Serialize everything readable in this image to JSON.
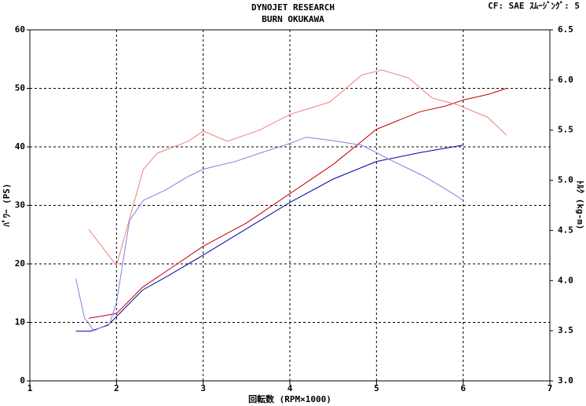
{
  "chart_data": {
    "type": "line",
    "title": "DYNOJET  RESEARCH",
    "subtitle": "BURN OKUKAWA",
    "annotation": "CF: SAE  ｽﾑｰｼﾞﾝｸﾞ: 5",
    "xlabel": "回転数 (RPM×1000)",
    "ylabel": "ﾊﾟﾜｰ (PS)",
    "y2label": "ﾄﾙｸ (kg-m)",
    "xlim": [
      1,
      7
    ],
    "xticks": [
      1,
      2,
      3,
      4,
      5,
      6,
      7
    ],
    "ylim": [
      0,
      60
    ],
    "yticks": [
      0,
      10,
      20,
      30,
      40,
      50,
      60
    ],
    "y2lim": [
      3,
      6.5
    ],
    "y2ticks": [
      {
        "value": 3,
        "label": "3.0"
      },
      3.5,
      {
        "value": 4,
        "label": "4.0"
      },
      4.5,
      {
        "value": 5,
        "label": "5.0"
      },
      5.5,
      {
        "value": 6,
        "label": "6.0"
      },
      6.5
    ],
    "grid": true,
    "series": [
      {
        "color": "#c00000",
        "x": [
          1.68,
          2.0,
          2.3,
          2.6,
          3.0,
          3.5,
          4.0,
          4.5,
          5.0,
          5.5,
          5.8,
          6.0,
          6.3,
          6.5
        ],
        "values": [
          10.7,
          11.5,
          16,
          19,
          23,
          27,
          32,
          37,
          43,
          46,
          47,
          48,
          49,
          50
        ]
      },
      {
        "color": "#0000a0",
        "x": [
          1.53,
          1.7,
          1.9,
          2.0,
          2.3,
          2.6,
          3.0,
          3.5,
          4.0,
          4.5,
          5.0,
          5.5,
          6.0
        ],
        "values": [
          8.5,
          8.5,
          9.5,
          11,
          15.5,
          18,
          21.5,
          26,
          30.5,
          34.5,
          37.5,
          39,
          40.3
        ]
      },
      {
        "color": "#f08080",
        "axis": "y2",
        "x": [
          1.68,
          2.0,
          2.31,
          2.47,
          2.83,
          3.0,
          3.28,
          3.65,
          4.01,
          4.46,
          4.83,
          5.06,
          5.37,
          5.64,
          5.91,
          6.28,
          6.5
        ],
        "values": [
          4.51,
          4.15,
          5.11,
          5.27,
          5.39,
          5.49,
          5.39,
          5.5,
          5.66,
          5.78,
          6.05,
          6.1,
          6.02,
          5.82,
          5.76,
          5.63,
          5.45
        ]
      },
      {
        "color": "#8080e0",
        "axis": "y2",
        "x": [
          1.53,
          1.63,
          1.74,
          1.92,
          2.0,
          2.15,
          2.31,
          2.56,
          2.83,
          3.0,
          3.38,
          3.65,
          4.01,
          4.19,
          4.46,
          4.83,
          5.19,
          5.55,
          5.82,
          6.0
        ],
        "values": [
          4.02,
          3.63,
          3.5,
          3.57,
          3.78,
          4.6,
          4.8,
          4.9,
          5.04,
          5.11,
          5.19,
          5.27,
          5.37,
          5.43,
          5.4,
          5.35,
          5.19,
          5.04,
          4.9,
          4.8
        ]
      }
    ]
  }
}
